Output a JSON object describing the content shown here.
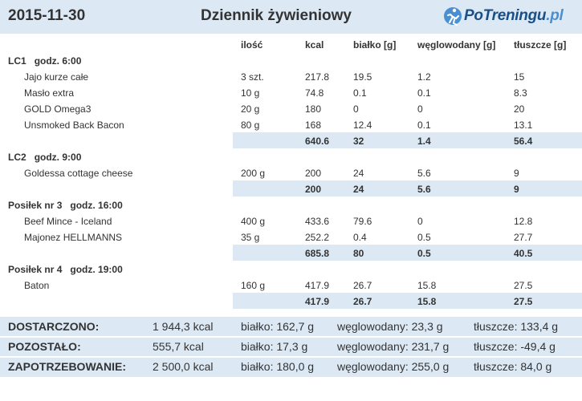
{
  "header": {
    "date": "2015-11-30",
    "title": "Dziennik żywieniowy",
    "logo_text_a": "PoTreningu",
    "logo_text_b": ".pl",
    "logo_color": "#1a4e86"
  },
  "columns": [
    "ilość",
    "kcal",
    "białko [g]",
    "węglowodany [g]",
    "tłuszcze [g]"
  ],
  "meals": [
    {
      "name": "LC1",
      "time": "godz. 6:00",
      "items": [
        {
          "name": "Jajo kurze całe",
          "qty": "3 szt.",
          "kcal": "217.8",
          "protein": "19.5",
          "carbs": "1.2",
          "fat": "15"
        },
        {
          "name": "Masło extra",
          "qty": "10 g",
          "kcal": "74.8",
          "protein": "0.1",
          "carbs": "0.1",
          "fat": "8.3"
        },
        {
          "name": "GOLD Omega3",
          "qty": "20 g",
          "kcal": "180",
          "protein": "0",
          "carbs": "0",
          "fat": "20"
        },
        {
          "name": "Unsmoked Back Bacon",
          "qty": "80 g",
          "kcal": "168",
          "protein": "12.4",
          "carbs": "0.1",
          "fat": "13.1"
        }
      ],
      "total": {
        "kcal": "640.6",
        "protein": "32",
        "carbs": "1.4",
        "fat": "56.4"
      }
    },
    {
      "name": "LC2",
      "time": "godz. 9:00",
      "items": [
        {
          "name": "Goldessa cottage cheese",
          "qty": "200 g",
          "kcal": "200",
          "protein": "24",
          "carbs": "5.6",
          "fat": "9"
        }
      ],
      "total": {
        "kcal": "200",
        "protein": "24",
        "carbs": "5.6",
        "fat": "9"
      }
    },
    {
      "name": "Posiłek nr 3",
      "time": "godz. 16:00",
      "items": [
        {
          "name": "Beef Mince - Iceland",
          "qty": "400 g",
          "kcal": "433.6",
          "protein": "79.6",
          "carbs": "0",
          "fat": "12.8"
        },
        {
          "name": "Majonez HELLMANNS",
          "qty": "35 g",
          "kcal": "252.2",
          "protein": "0.4",
          "carbs": "0.5",
          "fat": "27.7"
        }
      ],
      "total": {
        "kcal": "685.8",
        "protein": "80",
        "carbs": "0.5",
        "fat": "40.5"
      }
    },
    {
      "name": "Posiłek nr 4",
      "time": "godz. 19:00",
      "items": [
        {
          "name": "Baton",
          "qty": "160 g",
          "kcal": "417.9",
          "protein": "26.7",
          "carbs": "15.8",
          "fat": "27.5"
        }
      ],
      "total": {
        "kcal": "417.9",
        "protein": "26.7",
        "carbs": "15.8",
        "fat": "27.5"
      }
    }
  ],
  "summary": [
    {
      "label": "DOSTARCZONO:",
      "kcal": "1 944,3 kcal",
      "protein": "białko: 162,7 g",
      "carbs": "węglowodany: 23,3 g",
      "fat": "tłuszcze: 133,4 g"
    },
    {
      "label": "POZOSTAŁO:",
      "kcal": "555,7 kcal",
      "protein": "białko: 17,3 g",
      "carbs": "węglowodany: 231,7 g",
      "fat": "tłuszcze: -49,4 g"
    },
    {
      "label": "ZAPOTRZEBOWANIE:",
      "kcal": "2 500,0 kcal",
      "protein": "białko: 180,0 g",
      "carbs": "węglowodany: 255,0 g",
      "fat": "tłuszcze: 84,0 g"
    }
  ],
  "colors": {
    "accent_bg": "#dce9f5",
    "text": "#333333"
  }
}
